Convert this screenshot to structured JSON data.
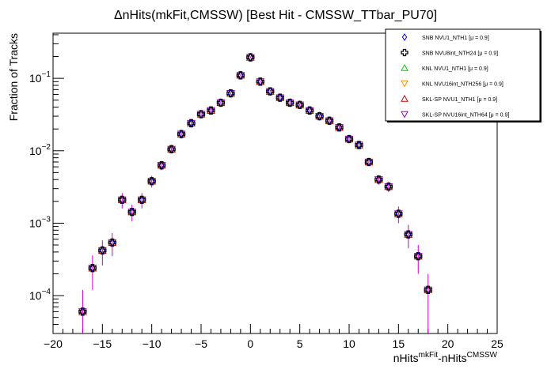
{
  "chart_data": {
    "type": "scatter",
    "title": "ΔnHits(mkFit,CMSSW) [Best Hit - CMSSW_TTbar_PU70]",
    "xlabel_base1": "nHits",
    "xlabel_sup1": "mkFit",
    "xlabel_base2": "-nHits",
    "xlabel_sup2": "CMSSW",
    "ylabel": "Fraction of Tracks",
    "x_axis": {
      "range": [
        -20,
        25
      ],
      "ticks": [
        -20,
        -15,
        -10,
        -5,
        0,
        5,
        10,
        15,
        20,
        25
      ],
      "tick_labels": [
        "−20",
        "−15",
        "−10",
        "−5",
        "0",
        "5",
        "10",
        "15",
        "20",
        "25"
      ]
    },
    "y_axis": {
      "scale": "log",
      "range": [
        3e-05,
        0.42
      ],
      "major_ticks": [
        0.0001,
        0.001,
        0.01,
        0.1
      ],
      "tick_label_base": "10",
      "tick_label_exps": [
        "−4",
        "−3",
        "−2",
        "−1"
      ]
    },
    "grid": false,
    "legend_position": "top-right",
    "x": [
      -17,
      -16,
      -15,
      -14,
      -13,
      -12,
      -11,
      -10,
      -9,
      -8,
      -7,
      -6,
      -5,
      -4,
      -3,
      -2,
      -1,
      0,
      1,
      2,
      3,
      4,
      5,
      6,
      7,
      8,
      9,
      10,
      11,
      12,
      13,
      14,
      15,
      16,
      17,
      18
    ],
    "values": [
      6e-05,
      0.00024,
      0.00042,
      0.00054,
      0.0021,
      0.00143,
      0.0021,
      0.0038,
      0.0063,
      0.0105,
      0.017,
      0.024,
      0.032,
      0.036,
      0.046,
      0.062,
      0.11,
      0.195,
      0.09,
      0.066,
      0.054,
      0.046,
      0.043,
      0.036,
      0.03,
      0.026,
      0.021,
      0.0145,
      0.012,
      0.007,
      0.004,
      0.0032,
      0.00135,
      0.0007,
      0.00035,
      0.00012
    ],
    "err_low": [
      3.5e-05,
      0.00012,
      0.00016,
      0.00019,
      0.0005,
      0.00037,
      0.0005,
      0.0007,
      0.0009,
      0.0012,
      0.0015,
      0.0018,
      0.002,
      0.002,
      0.0025,
      0.003,
      0.004,
      0.006,
      0.003,
      0.003,
      0.0025,
      0.002,
      0.002,
      0.002,
      0.0018,
      0.0016,
      0.0014,
      0.0012,
      0.0011,
      0.0008,
      0.0006,
      0.0005,
      0.00035,
      0.00025,
      0.00015,
      9e-05
    ],
    "err_high": [
      6e-05,
      0.00012,
      0.00016,
      0.00019,
      0.0005,
      0.00037,
      0.0005,
      0.0007,
      0.0009,
      0.0012,
      0.0015,
      0.0018,
      0.002,
      0.002,
      0.0025,
      0.003,
      0.004,
      0.006,
      0.003,
      0.003,
      0.0025,
      0.002,
      0.002,
      0.002,
      0.0018,
      0.0016,
      0.0014,
      0.0012,
      0.0011,
      0.0008,
      0.0006,
      0.0005,
      0.00035,
      0.00025,
      0.00015,
      8e-05
    ],
    "series": [
      {
        "name": "SNB NVU1_NTH1",
        "mu_text": "[μ = 0.9]",
        "marker": "diamond",
        "color": "#0000ff"
      },
      {
        "name": "SNB NVU8int_NTH24",
        "mu_text": "[μ = 0.9]",
        "marker": "cross",
        "color": "#000000"
      },
      {
        "name": "KNL NVU1_NTH1",
        "mu_text": "[μ = 0.9]",
        "marker": "triangle-up",
        "color": "#00cc00"
      },
      {
        "name": "KNL NVU16int_NTH256",
        "mu_text": "[μ = 0.9]",
        "marker": "triangle-down",
        "color": "#ff8800"
      },
      {
        "name": "SKL-SP NVU1_NTH1",
        "mu_text": "[μ = 0.9]",
        "marker": "triangle-up",
        "color": "#cc0000"
      },
      {
        "name": "SKL-SP NVU16int_NTH64",
        "mu_text": "[μ = 0.9]",
        "marker": "triangle-down",
        "color": "#9900cc"
      }
    ],
    "error_bar_color": "#cc00cc"
  }
}
